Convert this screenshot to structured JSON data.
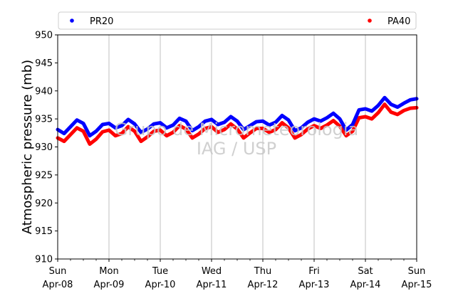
{
  "chart_data": {
    "type": "line",
    "ylabel": "Atmospheric pressure (mb)",
    "ylim": [
      910,
      950
    ],
    "yticks": [
      910,
      915,
      920,
      925,
      930,
      935,
      940,
      945,
      950
    ],
    "xlim": [
      "2018-04-08",
      "2018-04-15"
    ],
    "xticks": [
      {
        "day": "Sun",
        "date": "Apr-08"
      },
      {
        "day": "Mon",
        "date": "Apr-09"
      },
      {
        "day": "Tue",
        "date": "Apr-10"
      },
      {
        "day": "Wed",
        "date": "Apr-11"
      },
      {
        "day": "Thu",
        "date": "Apr-12"
      },
      {
        "day": "Fri",
        "date": "Apr-13"
      },
      {
        "day": "Sat",
        "date": "Apr-14"
      },
      {
        "day": "Sun",
        "date": "Apr-15"
      }
    ],
    "grid": "vertical",
    "legend_position": "top",
    "watermark": [
      "Grupo de Micrometeorologia",
      "IAG / USP"
    ],
    "x": [
      "2018-04-08 00:00",
      "2018-04-08 03:00",
      "2018-04-08 06:00",
      "2018-04-08 09:00",
      "2018-04-08 12:00",
      "2018-04-08 15:00",
      "2018-04-08 18:00",
      "2018-04-08 21:00",
      "2018-04-09 00:00",
      "2018-04-09 03:00",
      "2018-04-09 06:00",
      "2018-04-09 09:00",
      "2018-04-09 12:00",
      "2018-04-09 15:00",
      "2018-04-09 18:00",
      "2018-04-09 21:00",
      "2018-04-10 00:00",
      "2018-04-10 03:00",
      "2018-04-10 06:00",
      "2018-04-10 09:00",
      "2018-04-10 12:00",
      "2018-04-10 15:00",
      "2018-04-10 18:00",
      "2018-04-10 21:00",
      "2018-04-11 00:00",
      "2018-04-11 03:00",
      "2018-04-11 06:00",
      "2018-04-11 09:00",
      "2018-04-11 12:00",
      "2018-04-11 15:00",
      "2018-04-11 18:00",
      "2018-04-11 21:00",
      "2018-04-12 00:00",
      "2018-04-12 03:00",
      "2018-04-12 06:00",
      "2018-04-12 09:00",
      "2018-04-12 12:00",
      "2018-04-12 15:00",
      "2018-04-12 18:00",
      "2018-04-12 21:00",
      "2018-04-13 00:00",
      "2018-04-13 03:00",
      "2018-04-13 06:00",
      "2018-04-13 09:00",
      "2018-04-13 12:00",
      "2018-04-13 15:00",
      "2018-04-13 18:00",
      "2018-04-13 21:00",
      "2018-04-14 00:00",
      "2018-04-14 03:00",
      "2018-04-14 06:00",
      "2018-04-14 09:00",
      "2018-04-14 12:00",
      "2018-04-14 15:00",
      "2018-04-14 18:00",
      "2018-04-14 21:00",
      "2018-04-15 00:00"
    ],
    "series": [
      {
        "name": "PR20",
        "color": "#0000ff",
        "values": [
          933.1,
          932.4,
          933.6,
          934.8,
          934.2,
          932.0,
          932.8,
          934.0,
          934.2,
          933.4,
          933.8,
          934.9,
          934.1,
          932.6,
          933.2,
          934.1,
          934.3,
          933.4,
          933.9,
          935.1,
          934.6,
          932.9,
          933.6,
          934.6,
          934.9,
          934.0,
          934.4,
          935.4,
          934.6,
          933.1,
          933.8,
          934.5,
          934.6,
          933.9,
          934.4,
          935.6,
          934.8,
          932.9,
          933.4,
          934.4,
          935.0,
          934.6,
          935.2,
          936.0,
          935.0,
          933.0,
          934.0,
          936.6,
          936.8,
          936.4,
          937.4,
          938.8,
          937.6,
          937.1,
          937.8,
          938.4,
          938.6
        ]
      },
      {
        "name": "PA40",
        "color": "#ff0000",
        "values": [
          931.6,
          931.0,
          932.2,
          933.4,
          932.8,
          930.5,
          931.4,
          932.7,
          933.0,
          932.0,
          932.4,
          933.6,
          932.8,
          931.0,
          931.8,
          932.8,
          933.0,
          932.0,
          932.6,
          933.8,
          933.2,
          931.6,
          932.3,
          933.3,
          933.6,
          932.6,
          933.1,
          934.1,
          933.2,
          931.6,
          932.5,
          933.3,
          933.3,
          932.6,
          933.1,
          934.3,
          933.4,
          931.6,
          932.2,
          933.2,
          933.8,
          933.3,
          933.9,
          934.7,
          933.7,
          932.0,
          932.8,
          935.2,
          935.4,
          935.0,
          936.1,
          937.6,
          936.2,
          935.8,
          936.5,
          936.9,
          937.0
        ]
      }
    ]
  }
}
